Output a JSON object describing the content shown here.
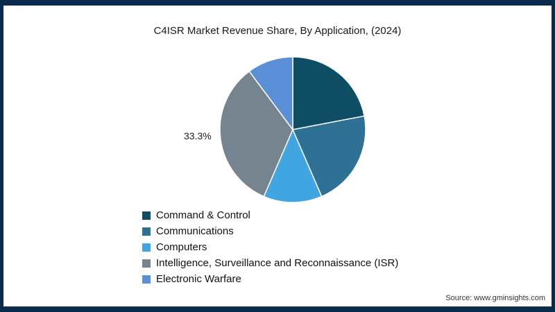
{
  "chart_data": {
    "type": "pie",
    "title": "C4ISR Market Revenue Share, By Application, (2024)",
    "start_angle_deg": -90,
    "direction": "clockwise",
    "legend_position": "bottom-left",
    "slices": [
      {
        "label": "Command & Control",
        "value": 22.0,
        "color": "#0e4d64",
        "data_label": ""
      },
      {
        "label": "Communications",
        "value": 21.5,
        "color": "#2e7194",
        "data_label": ""
      },
      {
        "label": "Computers",
        "value": 13.0,
        "color": "#41a5e1",
        "data_label": ""
      },
      {
        "label": "Intelligence, Surveillance and Reconnaissance (ISR)",
        "value": 33.3,
        "color": "#76848f",
        "data_label": "33.3%"
      },
      {
        "label": "Electronic Warfare",
        "value": 10.2,
        "color": "#5a8fd8",
        "data_label": ""
      }
    ]
  },
  "frame": {
    "border_color": "#0b2b4d"
  },
  "source": "Source: www.gminsights.com"
}
